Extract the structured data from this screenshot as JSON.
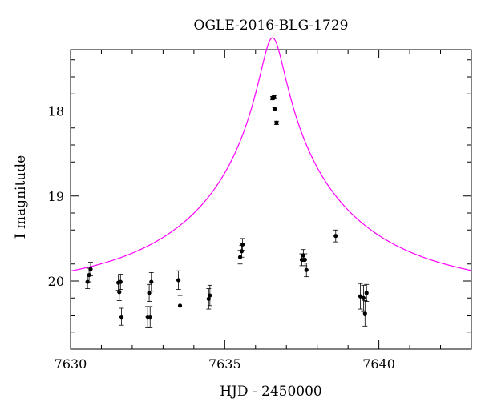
{
  "chart_data": {
    "type": "scatter",
    "title": "OGLE-2016-BLG-1729",
    "xlabel": "HJD - 2450000",
    "ylabel": "I magnitude",
    "xlim": [
      7630,
      7643
    ],
    "ylim": [
      20.8,
      17.28
    ],
    "y_inverted": true,
    "x_ticks": [
      7630,
      7635,
      7640
    ],
    "y_ticks": [
      18,
      19,
      20
    ],
    "grid": false,
    "model_color": "#ff00ff",
    "point_color": "#000000",
    "model": {
      "t0": 7636.55,
      "u0": 0.065,
      "tE": 5.5,
      "baseline": 20.11
    },
    "series": [
      {
        "points": [
          {
            "x": 7630.55,
            "y": 20.01,
            "err": 0.08
          },
          {
            "x": 7630.6,
            "y": 19.93,
            "err": 0.08
          },
          {
            "x": 7630.65,
            "y": 19.86,
            "err": 0.08
          },
          {
            "x": 7631.55,
            "y": 20.02,
            "err": 0.09
          },
          {
            "x": 7631.58,
            "y": 20.13,
            "err": 0.1
          },
          {
            "x": 7631.62,
            "y": 20.01,
            "err": 0.09
          },
          {
            "x": 7631.65,
            "y": 20.42,
            "err": 0.1
          },
          {
            "x": 7632.5,
            "y": 20.42,
            "err": 0.12
          },
          {
            "x": 7632.55,
            "y": 20.14,
            "err": 0.1
          },
          {
            "x": 7632.58,
            "y": 20.42,
            "err": 0.12
          },
          {
            "x": 7632.62,
            "y": 20.01,
            "err": 0.11
          },
          {
            "x": 7633.5,
            "y": 19.99,
            "err": 0.11
          },
          {
            "x": 7633.55,
            "y": 20.29,
            "err": 0.12
          },
          {
            "x": 7634.48,
            "y": 20.21,
            "err": 0.12
          },
          {
            "x": 7634.52,
            "y": 20.17,
            "err": 0.12
          },
          {
            "x": 7635.5,
            "y": 19.72,
            "err": 0.08
          },
          {
            "x": 7635.55,
            "y": 19.65,
            "err": 0.07
          },
          {
            "x": 7635.58,
            "y": 19.57,
            "err": 0.07
          },
          {
            "x": 7636.55,
            "y": 17.85,
            "err": 0.02
          },
          {
            "x": 7636.6,
            "y": 17.84,
            "err": 0.02
          },
          {
            "x": 7636.62,
            "y": 17.98,
            "err": 0.02
          },
          {
            "x": 7636.68,
            "y": 18.14,
            "err": 0.02
          },
          {
            "x": 7637.5,
            "y": 19.75,
            "err": 0.07
          },
          {
            "x": 7637.55,
            "y": 19.7,
            "err": 0.07
          },
          {
            "x": 7637.6,
            "y": 19.75,
            "err": 0.07
          },
          {
            "x": 7637.65,
            "y": 19.87,
            "err": 0.08
          },
          {
            "x": 7638.6,
            "y": 19.47,
            "err": 0.07
          },
          {
            "x": 7639.4,
            "y": 20.18,
            "err": 0.15
          },
          {
            "x": 7639.5,
            "y": 20.2,
            "err": 0.15
          },
          {
            "x": 7639.55,
            "y": 20.38,
            "err": 0.15
          },
          {
            "x": 7639.6,
            "y": 20.14,
            "err": 0.1
          }
        ]
      }
    ]
  }
}
